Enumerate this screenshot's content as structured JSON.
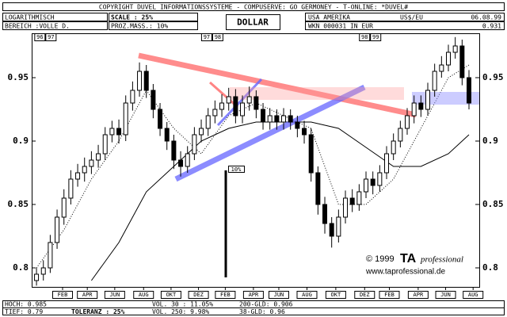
{
  "header": {
    "copyright": "COPYRIGHT DUVEL INFORMATIONSSYSTEME - COMPUSERVE: GO GERMONEY - T-ONLINE: *DUVEL#",
    "scale_type": "LOGARITHMISCH",
    "range": "BEREICH :VOLLE D.",
    "scale": "SCALE : 25%",
    "proz": "PROZ.MASS.: 10%",
    "country": "USA AMERIKA",
    "pair": "US$/EU",
    "date": "06.08.99",
    "wkn": "WKN 000031 IN EUR",
    "last": "0.931"
  },
  "footer": {
    "hoch": "HOCH: 0.985",
    "tief": "TIEF: 0.79",
    "toleranz": "TOLERANZ : 25%",
    "vol30": "VOL. 30 : 11.05%",
    "vol250": "VOL. 250: 9.98%",
    "gld200": "200-GLD: 0.906",
    "gld38": "38-GLD: 0.96"
  },
  "chart_data": {
    "type": "candlestick",
    "title": "DOLLAR",
    "xlim": [
      -0.7,
      64.5
    ],
    "ylim": [
      0.785,
      0.985
    ],
    "yticks": [
      0.8,
      0.85,
      0.9,
      0.95
    ],
    "xticks": [
      {
        "value": 3.8,
        "label": "FEB"
      },
      {
        "value": 7.4,
        "label": "APR"
      },
      {
        "value": 11.4,
        "label": "JUN"
      },
      {
        "value": 15.6,
        "label": "AUG"
      },
      {
        "value": 19.6,
        "label": "OKT"
      },
      {
        "value": 23.6,
        "label": "DEZ"
      },
      {
        "value": 27.5,
        "label": "FEB"
      },
      {
        "value": 31.6,
        "label": "APR"
      },
      {
        "value": 35.3,
        "label": "JUN"
      },
      {
        "value": 39.4,
        "label": "AUG"
      },
      {
        "value": 43.6,
        "label": "OKT"
      },
      {
        "value": 47.8,
        "label": "DEZ"
      },
      {
        "value": 51.4,
        "label": "FEB"
      },
      {
        "value": 55.6,
        "label": "APR"
      },
      {
        "value": 59.6,
        "label": "JUN"
      },
      {
        "value": 63.6,
        "label": "AUG"
      }
    ],
    "year_breaks": [
      {
        "x": 1.3,
        "left": "96",
        "right": "97"
      },
      {
        "x": 25.6,
        "left": "97",
        "right": "98"
      },
      {
        "x": 48.6,
        "left": "98",
        "right": "99"
      }
    ],
    "candles": [
      [
        0.79,
        0.8,
        0.786,
        0.795
      ],
      [
        0.795,
        0.806,
        0.79,
        0.8
      ],
      [
        0.8,
        0.826,
        0.796,
        0.82
      ],
      [
        0.82,
        0.846,
        0.815,
        0.84
      ],
      [
        0.84,
        0.862,
        0.834,
        0.855
      ],
      [
        0.855,
        0.877,
        0.85,
        0.87
      ],
      [
        0.87,
        0.882,
        0.864,
        0.875
      ],
      [
        0.875,
        0.887,
        0.868,
        0.88
      ],
      [
        0.88,
        0.892,
        0.874,
        0.885
      ],
      [
        0.885,
        0.897,
        0.879,
        0.89
      ],
      [
        0.89,
        0.911,
        0.885,
        0.905
      ],
      [
        0.905,
        0.916,
        0.899,
        0.91
      ],
      [
        0.91,
        0.917,
        0.898,
        0.905
      ],
      [
        0.905,
        0.936,
        0.9,
        0.93
      ],
      [
        0.93,
        0.947,
        0.924,
        0.94
      ],
      [
        0.94,
        0.962,
        0.935,
        0.955
      ],
      [
        0.955,
        0.96,
        0.934,
        0.94
      ],
      [
        0.94,
        0.945,
        0.918,
        0.925
      ],
      [
        0.925,
        0.93,
        0.904,
        0.91
      ],
      [
        0.91,
        0.915,
        0.893,
        0.9
      ],
      [
        0.9,
        0.905,
        0.878,
        0.885
      ],
      [
        0.885,
        0.892,
        0.872,
        0.88
      ],
      [
        0.88,
        0.896,
        0.875,
        0.89
      ],
      [
        0.89,
        0.911,
        0.885,
        0.905
      ],
      [
        0.905,
        0.917,
        0.899,
        0.91
      ],
      [
        0.91,
        0.926,
        0.904,
        0.92
      ],
      [
        0.92,
        0.932,
        0.914,
        0.925
      ],
      [
        0.925,
        0.937,
        0.919,
        0.93
      ],
      [
        0.93,
        0.942,
        0.924,
        0.935
      ],
      [
        0.935,
        0.941,
        0.914,
        0.92
      ],
      [
        0.92,
        0.936,
        0.914,
        0.93
      ],
      [
        0.93,
        0.943,
        0.924,
        0.935
      ],
      [
        0.935,
        0.94,
        0.918,
        0.925
      ],
      [
        0.925,
        0.93,
        0.909,
        0.915
      ],
      [
        0.915,
        0.926,
        0.909,
        0.92
      ],
      [
        0.92,
        0.925,
        0.909,
        0.915
      ],
      [
        0.915,
        0.926,
        0.909,
        0.92
      ],
      [
        0.92,
        0.925,
        0.909,
        0.915
      ],
      [
        0.915,
        0.92,
        0.903,
        0.91
      ],
      [
        0.91,
        0.916,
        0.898,
        0.905
      ],
      [
        0.905,
        0.91,
        0.868,
        0.875
      ],
      [
        0.875,
        0.88,
        0.842,
        0.85
      ],
      [
        0.85,
        0.856,
        0.827,
        0.835
      ],
      [
        0.835,
        0.84,
        0.816,
        0.825
      ],
      [
        0.825,
        0.846,
        0.82,
        0.84
      ],
      [
        0.84,
        0.861,
        0.835,
        0.855
      ],
      [
        0.855,
        0.862,
        0.844,
        0.85
      ],
      [
        0.85,
        0.866,
        0.845,
        0.86
      ],
      [
        0.86,
        0.876,
        0.855,
        0.87
      ],
      [
        0.87,
        0.876,
        0.858,
        0.865
      ],
      [
        0.865,
        0.881,
        0.86,
        0.875
      ],
      [
        0.875,
        0.896,
        0.87,
        0.89
      ],
      [
        0.89,
        0.906,
        0.885,
        0.9
      ],
      [
        0.9,
        0.916,
        0.895,
        0.91
      ],
      [
        0.91,
        0.926,
        0.905,
        0.92
      ],
      [
        0.92,
        0.936,
        0.914,
        0.93
      ],
      [
        0.93,
        0.936,
        0.919,
        0.925
      ],
      [
        0.925,
        0.946,
        0.92,
        0.94
      ],
      [
        0.94,
        0.961,
        0.935,
        0.955
      ],
      [
        0.955,
        0.967,
        0.95,
        0.96
      ],
      [
        0.96,
        0.976,
        0.955,
        0.97
      ],
      [
        0.97,
        0.982,
        0.965,
        0.975
      ],
      [
        0.975,
        0.98,
        0.944,
        0.95
      ],
      [
        0.95,
        0.956,
        0.925,
        0.93
      ]
    ],
    "lines": [
      {
        "style": "dotted",
        "x": [
          0,
          4,
          8,
          12,
          16,
          20,
          24,
          28,
          32,
          36,
          40,
          44,
          48,
          52,
          56,
          60,
          63
        ],
        "values": [
          0.8,
          0.83,
          0.87,
          0.9,
          0.94,
          0.91,
          0.89,
          0.92,
          0.93,
          0.92,
          0.91,
          0.85,
          0.85,
          0.87,
          0.91,
          0.95,
          0.96
        ]
      },
      {
        "style": "solid",
        "x": [
          8,
          12,
          16,
          20,
          24,
          28,
          32,
          36,
          40,
          44,
          48,
          52,
          56,
          60,
          63
        ],
        "values": [
          0.79,
          0.82,
          0.86,
          0.88,
          0.9,
          0.91,
          0.915,
          0.915,
          0.915,
          0.91,
          0.895,
          0.88,
          0.88,
          0.89,
          0.905
        ]
      }
    ],
    "scale_marker": "10%",
    "credit": "© 1999",
    "brand": "TA",
    "brand_sub": "professional",
    "url": "www.taprofessional.de"
  }
}
